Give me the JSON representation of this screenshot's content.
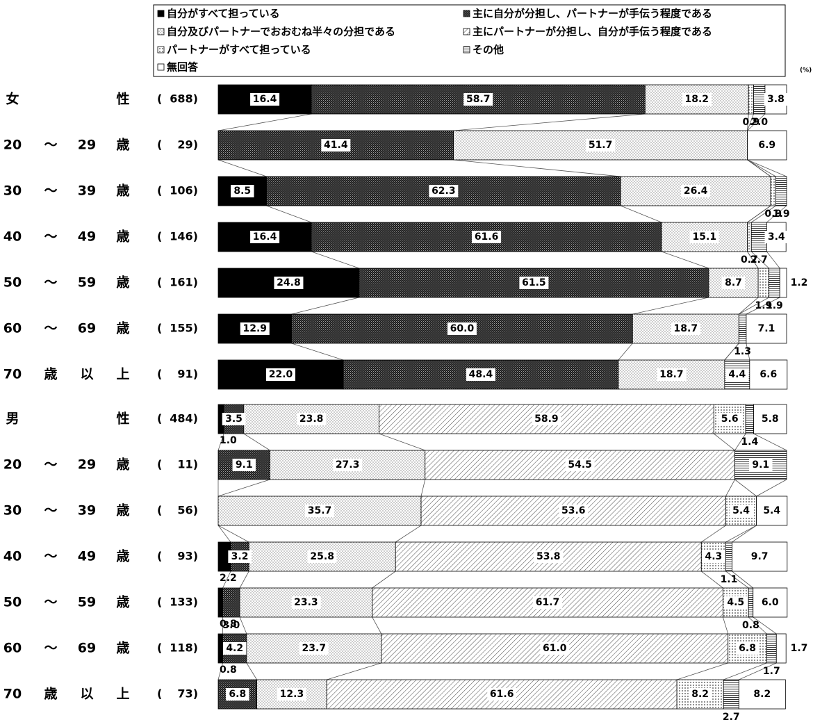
{
  "chart_data": {
    "type": "bar",
    "orientation": "horizontal",
    "stacked": "100%",
    "unit": "(%)",
    "legend": {
      "position": "top",
      "items": [
        {
          "name": "自分がすべて担っている",
          "marker": "■"
        },
        {
          "name": "主に自分が分担し、パートナーが手伝う程度である",
          "marker": "▩"
        },
        {
          "name": "自分及びパートナーでおおむね半々の分担である",
          "marker": "▨"
        },
        {
          "name": "主にパートナーが分担し、自分が手伝う程度である",
          "marker": "▧"
        },
        {
          "name": "パートナーがすべて担っている",
          "marker": "▨"
        },
        {
          "name": "その他",
          "marker": "⊟"
        },
        {
          "name": "無回答",
          "marker": "□"
        }
      ]
    },
    "series_colors": [
      "#000000",
      "#4a4a4a",
      "#e8e8e8",
      "#d0d0d0",
      "#f2f2f2",
      "#ffffff",
      "#ffffff"
    ],
    "rows": [
      {
        "label": [
          "女",
          "",
          "",
          "性"
        ],
        "n": "688",
        "values": [
          16.4,
          58.7,
          18.2,
          0,
          0.9,
          2.0,
          3.8
        ]
      },
      {
        "label": [
          "20",
          "～",
          "29",
          "歳"
        ],
        "n": "29",
        "values": [
          0,
          41.4,
          51.7,
          0,
          0,
          0,
          6.9
        ]
      },
      {
        "label": [
          "30",
          "～",
          "39",
          "歳"
        ],
        "n": "106",
        "values": [
          8.5,
          62.3,
          26.4,
          0,
          0.9,
          1.9,
          0
        ]
      },
      {
        "label": [
          "40",
          "～",
          "49",
          "歳"
        ],
        "n": "146",
        "values": [
          16.4,
          61.6,
          15.1,
          0,
          0.7,
          2.7,
          3.4
        ]
      },
      {
        "label": [
          "50",
          "～",
          "59",
          "歳"
        ],
        "n": "161",
        "values": [
          24.8,
          61.5,
          8.7,
          0,
          1.9,
          1.9,
          1.2
        ]
      },
      {
        "label": [
          "60",
          "～",
          "69",
          "歳"
        ],
        "n": "155",
        "values": [
          12.9,
          60.0,
          18.7,
          0,
          0,
          1.3,
          7.1
        ]
      },
      {
        "label": [
          "70",
          "歳",
          "以",
          "上"
        ],
        "n": "91",
        "values": [
          22.0,
          48.4,
          18.7,
          0,
          0,
          4.4,
          6.6
        ]
      },
      {
        "label": [
          "男",
          "",
          "",
          "性"
        ],
        "n": "484",
        "values": [
          1.0,
          3.5,
          23.8,
          58.9,
          5.6,
          1.4,
          5.8
        ]
      },
      {
        "label": [
          "20",
          "～",
          "29",
          "歳"
        ],
        "n": "11",
        "values": [
          0,
          9.1,
          27.3,
          54.5,
          0,
          9.1,
          0
        ]
      },
      {
        "label": [
          "30",
          "～",
          "39",
          "歳"
        ],
        "n": "56",
        "values": [
          0,
          0,
          35.7,
          53.6,
          5.4,
          0,
          5.4
        ]
      },
      {
        "label": [
          "40",
          "～",
          "49",
          "歳"
        ],
        "n": "93",
        "values": [
          2.2,
          3.2,
          25.8,
          53.8,
          4.3,
          1.1,
          9.7
        ]
      },
      {
        "label": [
          "50",
          "～",
          "59",
          "歳"
        ],
        "n": "133",
        "values": [
          0.8,
          3.0,
          23.3,
          61.7,
          4.5,
          0.8,
          6.0
        ]
      },
      {
        "label": [
          "60",
          "～",
          "69",
          "歳"
        ],
        "n": "118",
        "values": [
          0.8,
          4.2,
          23.7,
          61.0,
          6.8,
          1.7,
          1.7
        ]
      },
      {
        "label": [
          "70",
          "歳",
          "以",
          "上"
        ],
        "n": "73",
        "values": [
          0,
          6.8,
          12.3,
          61.6,
          8.2,
          2.7,
          8.2
        ]
      }
    ]
  }
}
